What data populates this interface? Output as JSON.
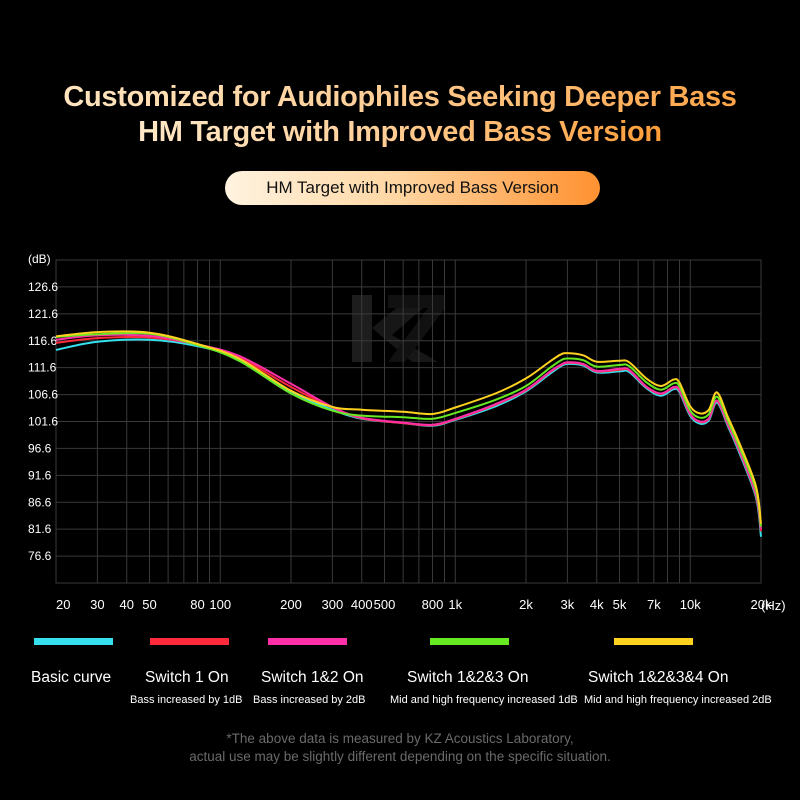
{
  "header": {
    "line1_white": "Customized for Audiophiles Seeking Deeper Bass",
    "line2": "HM Target with Improved Bass Version",
    "pill": "HM Target with Improved Bass Version"
  },
  "footnote": {
    "line1": "*The above data is measured by KZ Acoustics Laboratory,",
    "line2": "actual use may be slightly different depending on the specific situation."
  },
  "colors": {
    "background": "#000000",
    "grid": "#3a3a3a",
    "basic": "#35e0ef",
    "switch1": "#ff2a3c",
    "switch12": "#ff2fa8",
    "switch123": "#66e822",
    "switch1234": "#ffd21f"
  },
  "legend": [
    {
      "name": "Basic curve",
      "desc": ""
    },
    {
      "name": "Switch 1 On",
      "desc": "Bass increased by 1dB"
    },
    {
      "name": "Switch 1&2 On",
      "desc": "Bass increased by 2dB"
    },
    {
      "name": "Switch 1&2&3 On",
      "desc": "Mid and high frequency increased 1dB"
    },
    {
      "name": "Switch 1&2&3&4 On",
      "desc": "Mid and high frequency increased 2dB"
    }
  ],
  "chart_data": {
    "type": "line",
    "xscale": "log",
    "xlim": [
      20,
      20000
    ],
    "ylim": [
      71.6,
      131.6
    ],
    "ylabel": "(dB)",
    "xlabel": "(Hz)",
    "grid": true,
    "yticks": [
      76.6,
      81.6,
      86.6,
      91.6,
      96.6,
      101.6,
      106.6,
      111.6,
      116.6,
      121.6,
      126.6
    ],
    "xticks": [
      {
        "value": 20,
        "label": "20"
      },
      {
        "value": 30,
        "label": "30"
      },
      {
        "value": 40,
        "label": "40"
      },
      {
        "value": 50,
        "label": "50"
      },
      {
        "value": 80,
        "label": "80"
      },
      {
        "value": 100,
        "label": "100"
      },
      {
        "value": 200,
        "label": "200"
      },
      {
        "value": 300,
        "label": "300"
      },
      {
        "value": 400,
        "label": "400"
      },
      {
        "value": 500,
        "label": "500"
      },
      {
        "value": 800,
        "label": "800"
      },
      {
        "value": 1000,
        "label": "1k"
      },
      {
        "value": 2000,
        "label": "2k"
      },
      {
        "value": 3000,
        "label": "3k"
      },
      {
        "value": 4000,
        "label": "4k"
      },
      {
        "value": 5000,
        "label": "5k"
      },
      {
        "value": 7000,
        "label": "7k"
      },
      {
        "value": 10000,
        "label": "10k"
      },
      {
        "value": 20000,
        "label": "20k"
      }
    ],
    "x": [
      20,
      30,
      50,
      80,
      120,
      200,
      300,
      400,
      600,
      800,
      1000,
      1500,
      2000,
      2500,
      2800,
      3000,
      3500,
      4000,
      5000,
      5500,
      6500,
      7500,
      8500,
      9000,
      10000,
      11000,
      12000,
      13000,
      14500,
      16000,
      19000,
      20000
    ],
    "series": [
      {
        "name": "Basic curve",
        "color": "#35e0ef",
        "values": [
          114.9,
          116.4,
          116.8,
          115.6,
          113.2,
          107.1,
          103.8,
          102.1,
          101.3,
          100.8,
          101.9,
          104.5,
          107.2,
          110.3,
          111.8,
          112.3,
          112.0,
          110.7,
          110.9,
          110.8,
          107.8,
          106.4,
          107.6,
          107.0,
          102.6,
          101.2,
          101.8,
          105.1,
          100.6,
          96.3,
          87.6,
          80.2
        ]
      },
      {
        "name": "Switch 1 On",
        "color": "#ff2a3c",
        "values": [
          116.2,
          117.1,
          117.2,
          115.9,
          113.5,
          108.0,
          104.2,
          102.2,
          101.3,
          100.9,
          102.0,
          104.8,
          107.4,
          110.6,
          112.0,
          112.5,
          112.2,
          110.9,
          111.2,
          111.1,
          108.0,
          106.7,
          107.9,
          107.3,
          102.9,
          101.5,
          102.1,
          105.4,
          100.9,
          96.7,
          88.0,
          81.2
        ]
      },
      {
        "name": "Switch 1&2 On",
        "color": "#ff2fa8",
        "values": [
          116.8,
          117.6,
          117.5,
          115.9,
          113.8,
          108.6,
          104.3,
          102.3,
          101.4,
          101.0,
          102.1,
          104.9,
          107.5,
          110.7,
          112.1,
          112.6,
          112.3,
          111.0,
          111.4,
          111.2,
          108.1,
          106.8,
          108.0,
          107.4,
          103.0,
          101.6,
          102.2,
          105.5,
          101.0,
          96.8,
          88.2,
          81.6
        ]
      },
      {
        "name": "Switch 1&2&3 On",
        "color": "#66e822",
        "values": [
          117.3,
          117.8,
          117.9,
          115.8,
          112.9,
          106.8,
          103.6,
          102.7,
          102.4,
          102.1,
          103.2,
          105.7,
          108.2,
          111.4,
          112.9,
          113.3,
          113.0,
          111.8,
          112.1,
          111.9,
          108.9,
          107.5,
          108.7,
          108.1,
          103.6,
          102.3,
          103.0,
          106.2,
          101.6,
          97.4,
          89.0,
          82.1
        ]
      },
      {
        "name": "Switch 1&2&3&4 On",
        "color": "#ffd21f",
        "values": [
          117.4,
          118.2,
          118.1,
          116.0,
          113.3,
          107.3,
          104.3,
          103.8,
          103.4,
          103.0,
          104.2,
          106.9,
          109.6,
          112.6,
          114.0,
          114.3,
          113.9,
          112.7,
          112.9,
          112.6,
          109.6,
          108.2,
          109.4,
          108.8,
          104.4,
          103.1,
          103.8,
          107.0,
          102.3,
          98.1,
          89.7,
          82.6
        ]
      }
    ]
  }
}
